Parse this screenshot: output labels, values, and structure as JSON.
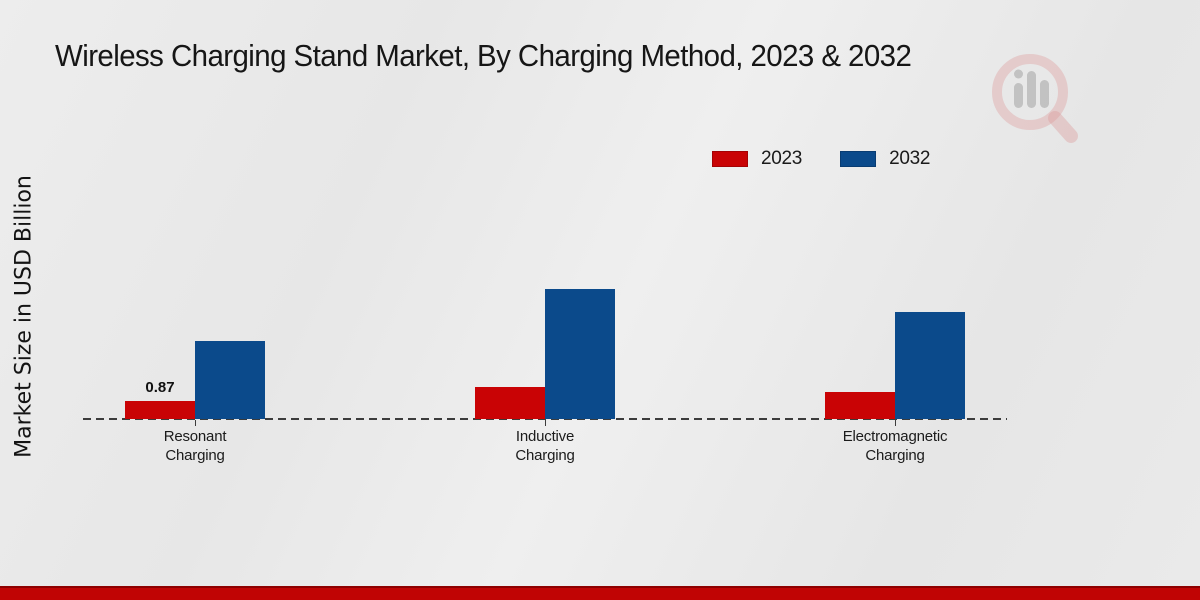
{
  "header": {
    "title": "Wireless Charging Stand Market, By Charging Method, 2023 & 2032"
  },
  "y_axis": {
    "label": "Market Size in USD Billion"
  },
  "legend": {
    "items": [
      {
        "label": "2023",
        "color": "#c90305"
      },
      {
        "label": "2032",
        "color": "#0b4a8b"
      }
    ]
  },
  "chart_data": {
    "type": "bar",
    "title": "Wireless Charging Stand Market, By Charging Method, 2023 & 2032",
    "ylabel": "Market Size in USD Billion",
    "xlabel": "",
    "categories": [
      "Resonant Charging",
      "Inductive Charging",
      "Electromagnetic Charging"
    ],
    "series": [
      {
        "name": "2023",
        "color": "#c90305",
        "values": [
          0.87,
          1.55,
          1.3
        ],
        "data_labels": [
          "0.87",
          "",
          ""
        ]
      },
      {
        "name": "2032",
        "color": "#0b4a8b",
        "values": [
          3.77,
          6.28,
          5.17
        ],
        "data_labels": [
          "",
          "",
          ""
        ]
      }
    ],
    "ylim": [
      0,
      7
    ],
    "grid": false,
    "y_tick_labels_shown": false,
    "baseline_style": "dashed",
    "legend_position": "top-right"
  },
  "branding": {
    "watermark_icon": "magnifier-bar-chart-logo",
    "bottom_strip_color": "#c00404",
    "bottom_strip_edge_color": "#8e0000",
    "background_color": "#e9e9e9"
  }
}
